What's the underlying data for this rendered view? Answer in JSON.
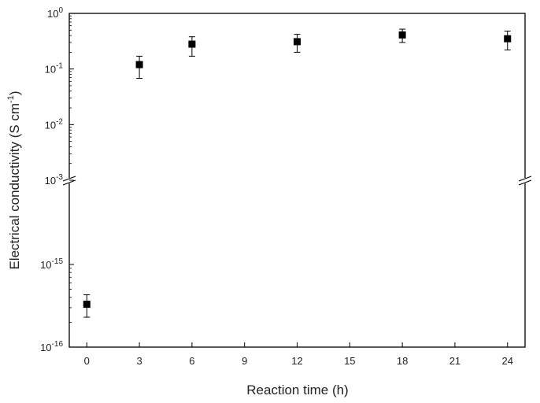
{
  "chart_data": {
    "type": "scatter",
    "xlabel": "Reaction time (h)",
    "ylabel": "Electrical conductivity (S cm",
    "ylabel_sup": "-1",
    "ylabel_close": ")",
    "x_ticks": [
      "0",
      "3",
      "6",
      "9",
      "12",
      "15",
      "18",
      "21",
      "24"
    ],
    "xlim": [
      -1,
      25
    ],
    "y_scale": "log (broken axis)",
    "y_upper_range": [
      0.001,
      1
    ],
    "y_lower_range": [
      1e-16,
      1e-14
    ],
    "y_ticks_upper": [
      {
        "base": "10",
        "exp": "0"
      },
      {
        "base": "10",
        "exp": "-1"
      },
      {
        "base": "10",
        "exp": "-2"
      },
      {
        "base": "10",
        "exp": "-3"
      }
    ],
    "y_ticks_lower": [
      {
        "base": "10",
        "exp": "-15"
      },
      {
        "base": "10",
        "exp": "-16"
      }
    ],
    "marker": "filled-square",
    "marker_color": "#000000",
    "points": [
      {
        "x": 0,
        "y": 3.3e-16,
        "y_low": 2.3e-16,
        "y_high": 4.3e-16
      },
      {
        "x": 3,
        "y": 0.12,
        "y_low": 0.068,
        "y_high": 0.17
      },
      {
        "x": 6,
        "y": 0.28,
        "y_low": 0.17,
        "y_high": 0.38
      },
      {
        "x": 12,
        "y": 0.31,
        "y_low": 0.2,
        "y_high": 0.42
      },
      {
        "x": 18,
        "y": 0.41,
        "y_low": 0.3,
        "y_high": 0.52
      },
      {
        "x": 24,
        "y": 0.35,
        "y_low": 0.22,
        "y_high": 0.48
      }
    ],
    "grid": false,
    "legend": "none"
  }
}
